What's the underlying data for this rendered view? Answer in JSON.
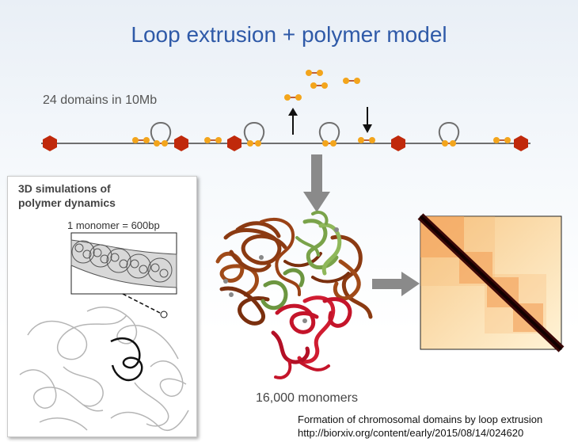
{
  "title": "Loop extrusion + polymer model",
  "domains_label": "24 domains in 10Mb",
  "simulation_panel": {
    "title": "3D simulations of\npolymer dynamics",
    "monomer_label": "1 monomer = 600bp"
  },
  "monomers_count": "16,000 monomers",
  "citation": {
    "line1": "Formation of chromosomal domains by loop extrusion",
    "line2": "http://biorxiv.org/content/early/2015/08/14/024620"
  },
  "colors": {
    "title": "#2f5aa8",
    "boundary": "#c0290b",
    "extruder": "#f3a51c",
    "chromatin_brown": "#8b3a12",
    "chromatin_green": "#7aa34a",
    "chromatin_red": "#c4142a",
    "arrow_gray": "#8a8a8a"
  }
}
